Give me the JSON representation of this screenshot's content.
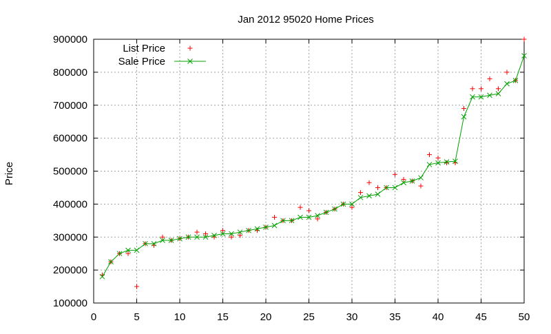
{
  "chart_data": {
    "type": "scatter",
    "title": "Jan 2012 95020 Home Prices",
    "xlabel": "",
    "ylabel": "Price",
    "xlim": [
      0,
      50
    ],
    "ylim": [
      100000,
      900000
    ],
    "xticks": [
      0,
      5,
      10,
      15,
      20,
      25,
      30,
      35,
      40,
      45,
      50
    ],
    "yticks": [
      100000,
      200000,
      300000,
      400000,
      500000,
      600000,
      700000,
      800000,
      900000
    ],
    "grid": true,
    "legend_position": "top-left",
    "series": [
      {
        "name": "List Price",
        "style": "points",
        "marker": "plus",
        "color": "#ff0000",
        "x": [
          1,
          2,
          3,
          4,
          5,
          6,
          7,
          8,
          9,
          10,
          11,
          12,
          13,
          14,
          15,
          16,
          17,
          18,
          19,
          20,
          21,
          22,
          23,
          24,
          25,
          26,
          27,
          28,
          29,
          30,
          31,
          32,
          33,
          34,
          35,
          36,
          37,
          38,
          39,
          40,
          41,
          42,
          43,
          44,
          45,
          46,
          47,
          48,
          49,
          50
        ],
        "y": [
          185000,
          225000,
          250000,
          250000,
          150000,
          280000,
          275000,
          300000,
          290000,
          295000,
          300000,
          315000,
          310000,
          300000,
          320000,
          300000,
          305000,
          320000,
          320000,
          330000,
          360000,
          350000,
          350000,
          390000,
          380000,
          355000,
          375000,
          385000,
          400000,
          390000,
          435000,
          465000,
          450000,
          450000,
          490000,
          475000,
          470000,
          455000,
          550000,
          540000,
          525000,
          525000,
          690000,
          750000,
          750000,
          780000,
          750000,
          800000,
          775000,
          900000
        ]
      },
      {
        "name": "Sale Price",
        "style": "linespoints",
        "marker": "cross",
        "color": "#00a000",
        "x": [
          1,
          2,
          3,
          4,
          5,
          6,
          7,
          8,
          9,
          10,
          11,
          12,
          13,
          14,
          15,
          16,
          17,
          18,
          19,
          20,
          21,
          22,
          23,
          24,
          25,
          26,
          27,
          28,
          29,
          30,
          31,
          32,
          33,
          34,
          35,
          36,
          37,
          38,
          39,
          40,
          41,
          42,
          43,
          44,
          45,
          46,
          47,
          48,
          49,
          50
        ],
        "y": [
          180000,
          225000,
          250000,
          260000,
          260000,
          280000,
          280000,
          290000,
          290000,
          295000,
          300000,
          300000,
          300000,
          305000,
          310000,
          310000,
          315000,
          320000,
          325000,
          330000,
          335000,
          350000,
          350000,
          360000,
          360000,
          365000,
          375000,
          385000,
          400000,
          400000,
          420000,
          425000,
          430000,
          450000,
          450000,
          465000,
          470000,
          480000,
          520000,
          525000,
          528000,
          530000,
          665000,
          725000,
          725000,
          730000,
          735000,
          765000,
          775000,
          850000
        ]
      }
    ]
  }
}
